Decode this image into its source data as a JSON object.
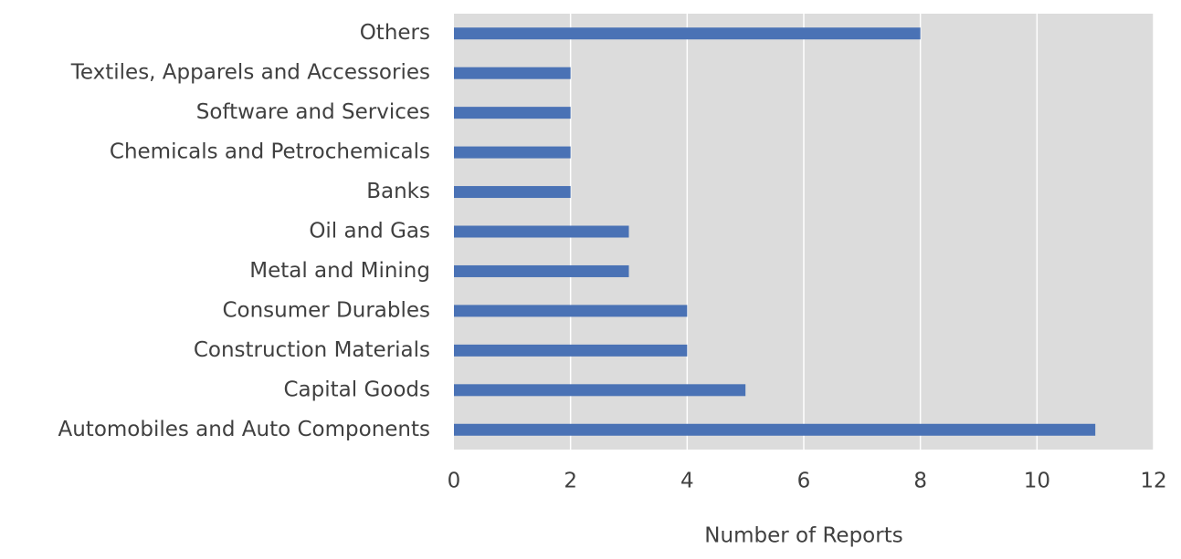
{
  "chart_data": {
    "type": "bar",
    "orientation": "horizontal",
    "categories": [
      "Automobiles and Auto Components",
      "Capital Goods",
      "Construction Materials",
      "Consumer Durables",
      "Metal and Mining",
      "Oil and Gas",
      "Banks",
      "Chemicals and Petrochemicals",
      "Software and Services",
      "Textiles, Apparels and Accessories",
      "Others"
    ],
    "values": [
      11,
      5,
      4,
      4,
      3,
      3,
      2,
      2,
      2,
      2,
      8
    ],
    "color": "#4a72b5",
    "xlabel": "Number of Reports",
    "xlim": [
      0,
      12
    ],
    "xticks": [
      0,
      2,
      4,
      6,
      8,
      10,
      12
    ],
    "grid": true
  }
}
